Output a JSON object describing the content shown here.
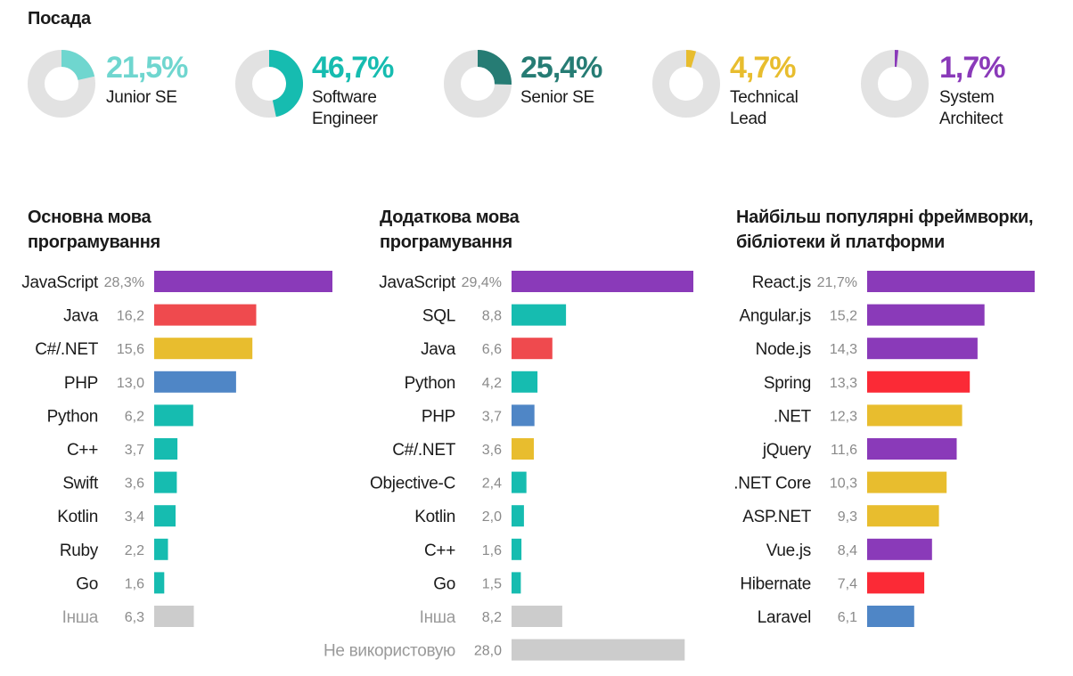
{
  "position": {
    "title": "Посада",
    "items": [
      {
        "pct": "21,5%",
        "value": 21.5,
        "label": "Junior SE",
        "color": "#6fd6cf"
      },
      {
        "pct": "46,7%",
        "value": 46.7,
        "label": "Software\nEngineer",
        "color": "#16bcb0"
      },
      {
        "pct": "25,4%",
        "value": 25.4,
        "label": "Senior SE",
        "color": "#267c74"
      },
      {
        "pct": "4,7%",
        "value": 4.7,
        "label": "Technical\nLead",
        "color": "#e8bd2e"
      },
      {
        "pct": "1,7%",
        "value": 1.7,
        "label": "System\nArchitect",
        "color": "#8a3ab9"
      }
    ],
    "track_color": "#e2e2e2"
  },
  "chart_data": [
    {
      "type": "bar",
      "title": "Основна мова\nпрограмування",
      "categories": [
        "JavaScript",
        "Java",
        "C#/.NET",
        "PHP",
        "Python",
        "C++",
        "Swift",
        "Kotlin",
        "Ruby",
        "Go",
        "Інша"
      ],
      "value_labels": [
        "28,3%",
        "16,2",
        "15,6",
        "13,0",
        "6,2",
        "3,7",
        "3,6",
        "3,4",
        "2,2",
        "1,6",
        "6,3"
      ],
      "values": [
        28.3,
        16.2,
        15.6,
        13.0,
        6.2,
        3.7,
        3.6,
        3.4,
        2.2,
        1.6,
        6.3
      ],
      "colors": [
        "#8a3ab9",
        "#ef4a4e",
        "#e8bd2e",
        "#4f86c6",
        "#16bcb0",
        "#16bcb0",
        "#16bcb0",
        "#16bcb0",
        "#16bcb0",
        "#16bcb0",
        "#cccccc"
      ],
      "muted": [
        false,
        false,
        false,
        false,
        false,
        false,
        false,
        false,
        false,
        false,
        true
      ]
    },
    {
      "type": "bar",
      "title": "Додаткова мова\nпрограмування",
      "categories": [
        "JavaScript",
        "SQL",
        "Java",
        "Python",
        "PHP",
        "C#/.NET",
        "Objective-C",
        "Kotlin",
        "C++",
        "Go",
        "Інша",
        "Не використовую"
      ],
      "value_labels": [
        "29,4%",
        "8,8",
        "6,6",
        "4,2",
        "3,7",
        "3,6",
        "2,4",
        "2,0",
        "1,6",
        "1,5",
        "8,2",
        "28,0"
      ],
      "values": [
        29.4,
        8.8,
        6.6,
        4.2,
        3.7,
        3.6,
        2.4,
        2.0,
        1.6,
        1.5,
        8.2,
        28.0
      ],
      "colors": [
        "#8a3ab9",
        "#16bcb0",
        "#ef4a4e",
        "#16bcb0",
        "#4f86c6",
        "#e8bd2e",
        "#16bcb0",
        "#16bcb0",
        "#16bcb0",
        "#16bcb0",
        "#cccccc",
        "#cccccc"
      ],
      "muted": [
        false,
        false,
        false,
        false,
        false,
        false,
        false,
        false,
        false,
        false,
        true,
        true
      ]
    },
    {
      "type": "bar",
      "title": "Найбільш популярні фреймворки,\nбібліотеки й платформи",
      "categories": [
        "React.js",
        "Angular.js",
        "Node.js",
        "Spring",
        ".NET",
        "jQuery",
        ".NET Core",
        "ASP.NET",
        "Vue.js",
        "Hibernate",
        "Laravel"
      ],
      "value_labels": [
        "21,7%",
        "15,2",
        "14,3",
        "13,3",
        "12,3",
        "11,6",
        "10,3",
        "9,3",
        "8,4",
        "7,4",
        "6,1"
      ],
      "values": [
        21.7,
        15.2,
        14.3,
        13.3,
        12.3,
        11.6,
        10.3,
        9.3,
        8.4,
        7.4,
        6.1
      ],
      "colors": [
        "#8a3ab9",
        "#8a3ab9",
        "#8a3ab9",
        "#fb2a36",
        "#e8bd2e",
        "#8a3ab9",
        "#e8bd2e",
        "#e8bd2e",
        "#8a3ab9",
        "#fb2a36",
        "#4f86c6"
      ],
      "muted": [
        false,
        false,
        false,
        false,
        false,
        false,
        false,
        false,
        false,
        false,
        false
      ]
    }
  ]
}
